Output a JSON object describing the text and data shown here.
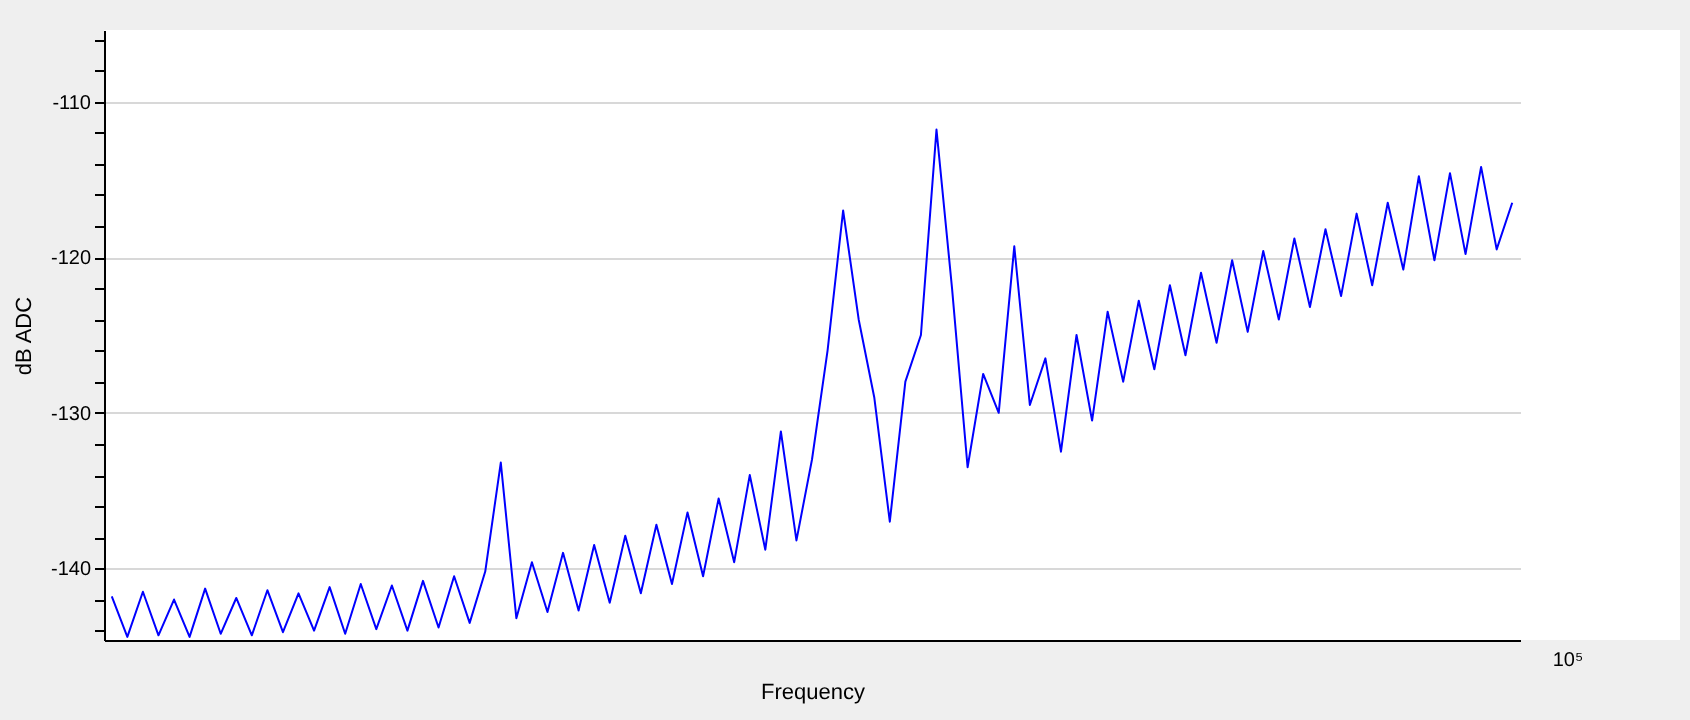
{
  "chart_data": {
    "type": "line",
    "xlabel": "Frequency",
    "ylabel": "dB ADC",
    "grid": true,
    "annotations": [
      "10⁵"
    ],
    "ylim": [
      -144.6,
      -105.4
    ],
    "yticks": [
      {
        "value": -144,
        "label": null
      },
      {
        "value": -142,
        "label": null
      },
      -140,
      {
        "value": -138,
        "label": null
      },
      {
        "value": -136,
        "label": null
      },
      {
        "value": -134,
        "label": null
      },
      {
        "value": -132,
        "label": null
      },
      -130,
      {
        "value": -128,
        "label": null
      },
      {
        "value": -126,
        "label": null
      },
      {
        "value": -124,
        "label": null
      },
      {
        "value": -122,
        "label": null
      },
      -120,
      {
        "value": -118,
        "label": null
      },
      {
        "value": -116,
        "label": null
      },
      {
        "value": -114,
        "label": null
      },
      {
        "value": -112,
        "label": null
      },
      -110,
      {
        "value": -108,
        "label": null
      },
      {
        "value": -106,
        "label": null
      }
    ],
    "categories": [
      null,
      null,
      null,
      null,
      null,
      null,
      null,
      null,
      null,
      null,
      null,
      null,
      null,
      null,
      null,
      null,
      null,
      null,
      null,
      null,
      null,
      null,
      null,
      null,
      null,
      null,
      null,
      null,
      null,
      null,
      null,
      null,
      null,
      null,
      null,
      null,
      null,
      null,
      null,
      null,
      null,
      null,
      null,
      null,
      null,
      null,
      null,
      null,
      null,
      null,
      null,
      null,
      null,
      null,
      null,
      null,
      null,
      null,
      null,
      null,
      null,
      null,
      null,
      null,
      null,
      null,
      null,
      null,
      null,
      null,
      null,
      null,
      null,
      null,
      null,
      null,
      null,
      null,
      null,
      null,
      null,
      null,
      null,
      null,
      null,
      null,
      null,
      null,
      null,
      null,
      null
    ],
    "series": [
      {
        "color": "#0000ff",
        "values": [
          -141.8,
          -144.4,
          -141.5,
          -144.3,
          -142,
          -144.4,
          -141.3,
          -144.2,
          -141.9,
          -144.3,
          -141.4,
          -144.1,
          -141.6,
          -144.0,
          -141.2,
          -144.2,
          -141.0,
          -143.9,
          -141.1,
          -144.0,
          -140.8,
          -143.8,
          -140.5,
          -143.5,
          -140.2,
          -133.2,
          -143.2,
          -139.6,
          -142.8,
          -139.0,
          -142.7,
          -138.5,
          -142.2,
          -137.9,
          -141.6,
          -137.2,
          -141.0,
          -136.4,
          -140.5,
          -135.5,
          -139.6,
          -134.0,
          -138.8,
          -131.2,
          -138.2,
          -133.0,
          -126,
          -117.0,
          -124,
          -129,
          -137,
          -128,
          -125,
          -111.8,
          -122,
          -133.5,
          -127.5,
          -130,
          -119.3,
          -129.5,
          -126.5,
          -132.5,
          -125,
          -130.5,
          -123.5,
          -128,
          -122.8,
          -127.2,
          -121.8,
          -126.3,
          -121,
          -125.5,
          -120.2,
          -124.8,
          -119.6,
          -124,
          -118.8,
          -123.2,
          -118.2,
          -122.5,
          -117.2,
          -121.8,
          -116.5,
          -120.8,
          -114.8,
          -120.2,
          -114.6,
          -119.8,
          -114.2,
          -119.5,
          -116.5
        ]
      }
    ]
  }
}
